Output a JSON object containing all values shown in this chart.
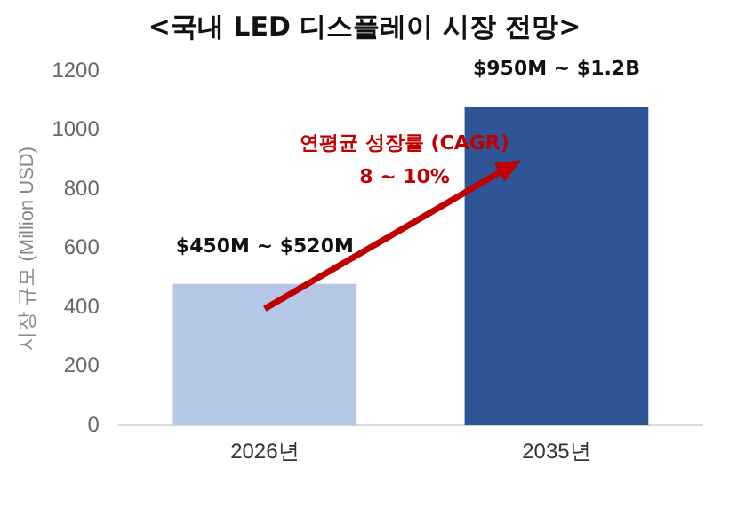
{
  "chart_data": {
    "type": "bar",
    "title": "<국내 LED 디스플레이 시장 전망>",
    "ylabel": "시장 규모 (Million USD)",
    "categories": [
      "2026년",
      "2035년"
    ],
    "values": [
      480,
      1080
    ],
    "colors": [
      "#b4c7e7",
      "#2f5597"
    ],
    "ylim": [
      0,
      1200
    ],
    "yticks": [
      0,
      200,
      400,
      600,
      800,
      1000,
      1200
    ],
    "grid": false,
    "annotations": [
      {
        "text": "$450M ~ $520M",
        "x": "2026년",
        "y": 480
      },
      {
        "text": "$950M ~ $1.2B",
        "x": "2035년",
        "y": 1080
      },
      "연평균 성장률 (CAGR)",
      "8 ~ 10%"
    ]
  }
}
